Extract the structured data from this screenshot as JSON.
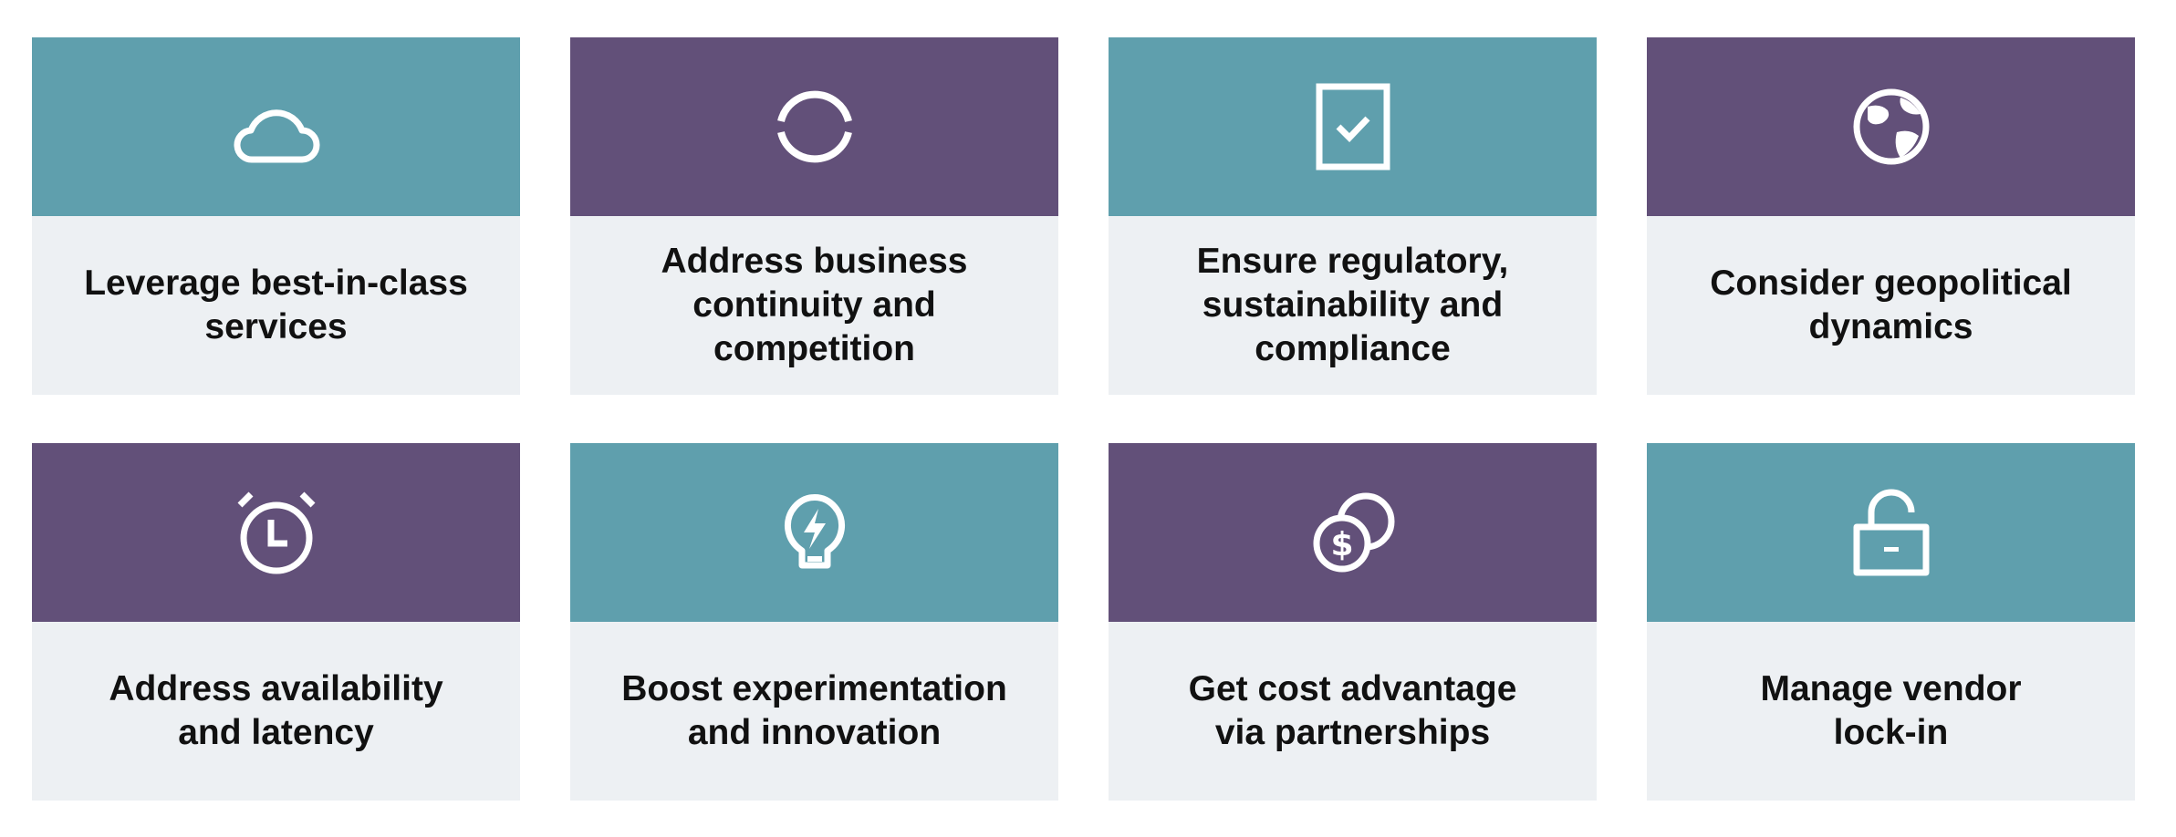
{
  "colors": {
    "teal": "#5f9fad",
    "purple": "#625079",
    "label_background": "#edf0f3",
    "icon": "#ffffff",
    "text": "#111111"
  },
  "cards": [
    {
      "label": "Leverage best-in-class\nservices",
      "icon": "cloud-icon",
      "color": "teal"
    },
    {
      "label": "Address business\ncontinuity and\ncompetition",
      "icon": "circular-arrows-icon",
      "color": "purple"
    },
    {
      "label": "Ensure regulatory,\nsustainability and\ncompliance",
      "icon": "checked-document-icon",
      "color": "teal"
    },
    {
      "label": "Consider geopolitical\ndynamics",
      "icon": "globe-icon",
      "color": "purple"
    },
    {
      "label": "Address availability\nand latency",
      "icon": "alarm-clock-icon",
      "color": "purple"
    },
    {
      "label": "Boost experimentation\nand innovation",
      "icon": "lightbulb-icon",
      "color": "teal"
    },
    {
      "label": "Get cost advantage\nvia partnerships",
      "icon": "coins-icon",
      "color": "purple"
    },
    {
      "label": "Manage vendor\nlock-in",
      "icon": "unlocked-padlock-icon",
      "color": "teal"
    }
  ]
}
